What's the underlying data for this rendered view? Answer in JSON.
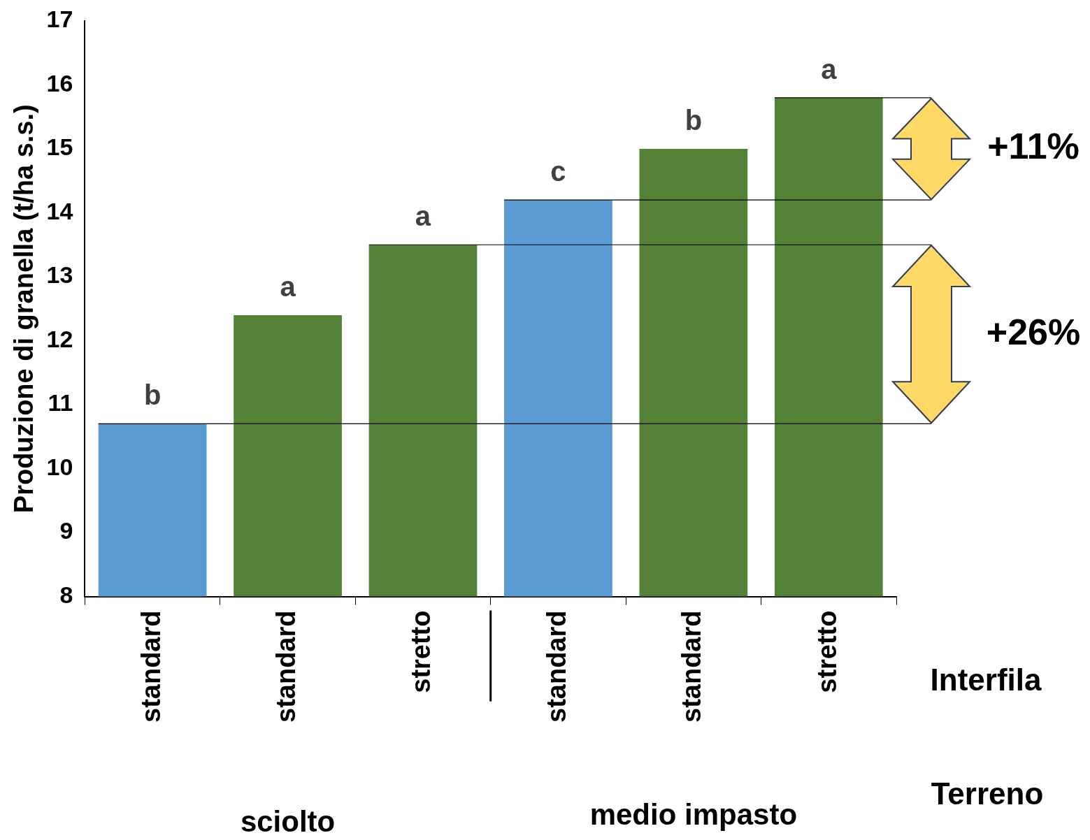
{
  "chart_data": {
    "type": "bar",
    "ylabel": "Produzione di granella (t/ha s.s.)",
    "categories": [
      "standard",
      "standard",
      "stretto",
      "standard",
      "standard",
      "stretto"
    ],
    "values": [
      10.7,
      12.4,
      13.5,
      14.2,
      15.0,
      15.8
    ],
    "colors": [
      "#5b9bd5",
      "#538135",
      "#538135",
      "#5b9bd5",
      "#538135",
      "#538135"
    ],
    "value_labels": [
      "b",
      "a",
      "a",
      "c",
      "b",
      "a"
    ],
    "ylim": [
      8,
      17
    ],
    "yticks": [
      8,
      9,
      10,
      11,
      12,
      13,
      14,
      15,
      16,
      17
    ],
    "ref_lines": [
      {
        "axis": "y",
        "value": 10.7,
        "color": "#000000"
      },
      {
        "axis": "y",
        "value": 13.5,
        "color": "#000000"
      },
      {
        "axis": "y",
        "value": 14.2,
        "color": "#000000"
      },
      {
        "axis": "y",
        "value": 15.8,
        "color": "#000000"
      }
    ],
    "annotations": [
      "+11%",
      "+26%",
      "Interfila",
      "Terreno",
      "sciolto",
      "medio impasto"
    ],
    "legend": false
  }
}
